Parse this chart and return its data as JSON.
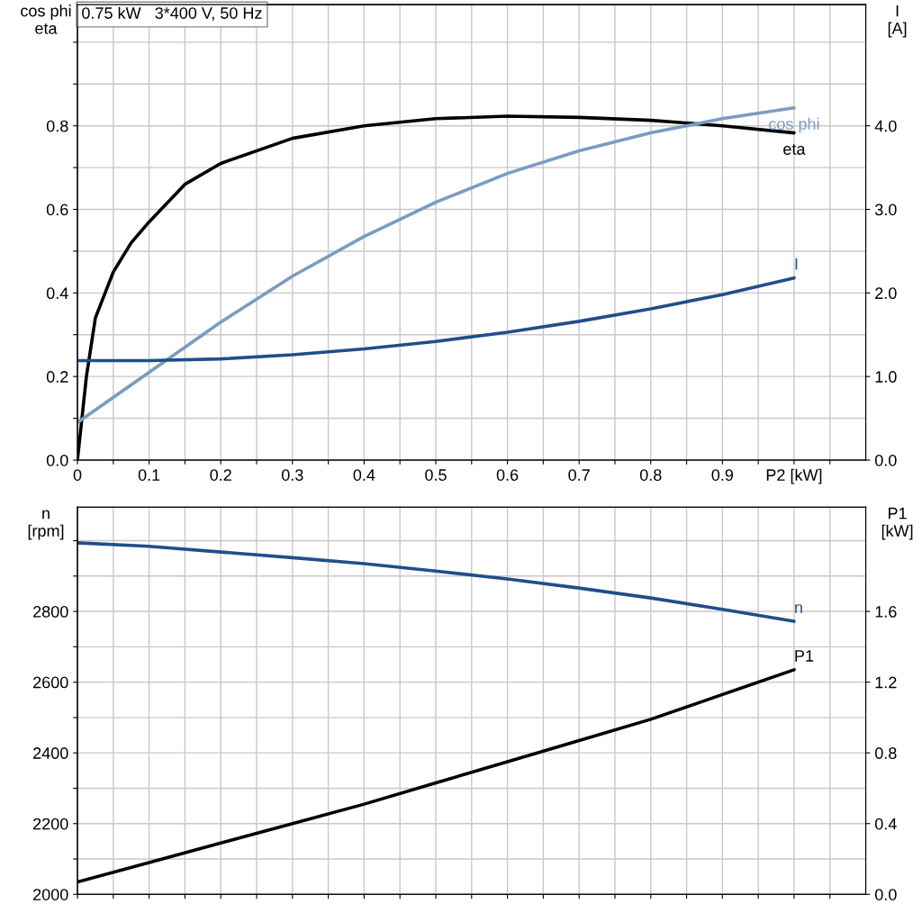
{
  "chart_data": [
    {
      "type": "line",
      "title": "0.75 kW   3*400 V, 50 Hz",
      "ylabel": "cos phi\neta",
      "y2label": "I\n[A]",
      "grid": true,
      "legend": false,
      "marker": "none",
      "line_style": "solid",
      "xlim": [
        0,
        1.1
      ],
      "ylim": [
        0,
        1.09
      ],
      "y2lim": [
        0,
        5.45
      ],
      "xticks": [
        {
          "value": 0,
          "label": "0"
        },
        {
          "value": 0.05,
          "label": null
        },
        0.1,
        {
          "value": 0.15,
          "label": null
        },
        0.2,
        {
          "value": 0.25,
          "label": null
        },
        0.3,
        {
          "value": 0.35,
          "label": null
        },
        0.4,
        {
          "value": 0.45,
          "label": null
        },
        0.5,
        {
          "value": 0.55,
          "label": null
        },
        0.6,
        {
          "value": 0.65,
          "label": null
        },
        0.7,
        {
          "value": 0.75,
          "label": null
        },
        0.8,
        {
          "value": 0.85,
          "label": null
        },
        0.9,
        {
          "value": 0.95,
          "label": null
        },
        {
          "value": 1.0,
          "label": "P2 [kW]"
        },
        {
          "value": 1.05,
          "label": null
        }
      ],
      "yticks": [
        {
          "value": 0,
          "label": "0.0"
        },
        {
          "value": 0.1,
          "label": null
        },
        0.2,
        {
          "value": 0.3,
          "label": null
        },
        0.4,
        {
          "value": 0.5,
          "label": null
        },
        0.6,
        {
          "value": 0.7,
          "label": null
        },
        0.8,
        {
          "value": 0.9,
          "label": null
        },
        {
          "value": 1.0,
          "label": null
        }
      ],
      "y2ticks": [
        {
          "value": 0,
          "label": "0.0"
        },
        {
          "value": 1,
          "label": "1.0"
        },
        {
          "value": 2,
          "label": "2.0"
        },
        {
          "value": 3,
          "label": "3.0"
        },
        {
          "value": 4,
          "label": "4.0"
        }
      ],
      "series": [
        {
          "name": "eta",
          "color": "#000000",
          "x": [
            0,
            0.0125,
            0.025,
            0.05,
            0.075,
            0.1,
            0.15,
            0.2,
            0.3,
            0.4,
            0.5,
            0.6,
            0.7,
            0.8,
            0.9,
            1.0
          ],
          "values": [
            0,
            0.2,
            0.34,
            0.45,
            0.52,
            0.57,
            0.66,
            0.71,
            0.77,
            0.8,
            0.817,
            0.823,
            0.82,
            0.813,
            0.8,
            0.783
          ]
        },
        {
          "name": "cos phi",
          "color": "#7a9cc0",
          "x": [
            0,
            0.1,
            0.2,
            0.3,
            0.4,
            0.5,
            0.6,
            0.7,
            0.8,
            0.9,
            1.0
          ],
          "values": [
            0.09,
            0.21,
            0.33,
            0.44,
            0.535,
            0.617,
            0.686,
            0.74,
            0.783,
            0.817,
            0.843
          ]
        },
        {
          "name": "I",
          "color": "#1f4f8a",
          "axis": "y2",
          "x": [
            0,
            0.1,
            0.2,
            0.3,
            0.4,
            0.5,
            0.6,
            0.7,
            0.8,
            0.9,
            1.0
          ],
          "values": [
            1.19,
            1.19,
            1.21,
            1.26,
            1.33,
            1.42,
            1.53,
            1.66,
            1.81,
            1.98,
            2.18
          ]
        }
      ]
    },
    {
      "type": "line",
      "ylabel": "n\n[rpm]",
      "y2label": "P1\n[kW]",
      "grid": true,
      "legend": false,
      "marker": "none",
      "line_style": "solid",
      "tick_labels": "y",
      "xlim": [
        0,
        1.1
      ],
      "ylim": [
        2000,
        3095
      ],
      "y2lim": [
        0,
        2.19
      ],
      "xticks": [
        0,
        0.05,
        0.1,
        0.15,
        0.2,
        0.25,
        0.3,
        0.35,
        0.4,
        0.45,
        0.5,
        0.55,
        0.6,
        0.65,
        0.7,
        0.75,
        0.8,
        0.85,
        0.9,
        0.95,
        1.0,
        1.05
      ],
      "yticks": [
        2000,
        {
          "value": 2100,
          "label": null
        },
        2200,
        {
          "value": 2300,
          "label": null
        },
        2400,
        {
          "value": 2500,
          "label": null
        },
        2600,
        {
          "value": 2700,
          "label": null
        },
        2800,
        {
          "value": 2900,
          "label": null
        },
        {
          "value": 3000,
          "label": null
        }
      ],
      "y2ticks": [
        {
          "value": 0,
          "label": "0.0"
        },
        0.4,
        0.8,
        1.2,
        1.6
      ],
      "series": [
        {
          "name": "n",
          "color": "#1f4f8a",
          "x": [
            0,
            0.1,
            0.2,
            0.3,
            0.4,
            0.5,
            0.6,
            0.7,
            0.8,
            0.9,
            1.0
          ],
          "values": [
            2994,
            2984,
            2968,
            2952,
            2935,
            2914,
            2892,
            2866,
            2838,
            2806,
            2772
          ]
        },
        {
          "name": "P1",
          "color": "#000000",
          "axis": "y2",
          "x": [
            0,
            0.1,
            0.2,
            0.3,
            0.4,
            0.5,
            0.6,
            0.7,
            0.8,
            0.9,
            1.0
          ],
          "values": [
            0.07,
            0.18,
            0.29,
            0.4,
            0.51,
            0.63,
            0.75,
            0.87,
            0.99,
            1.13,
            1.27
          ]
        }
      ]
    }
  ]
}
